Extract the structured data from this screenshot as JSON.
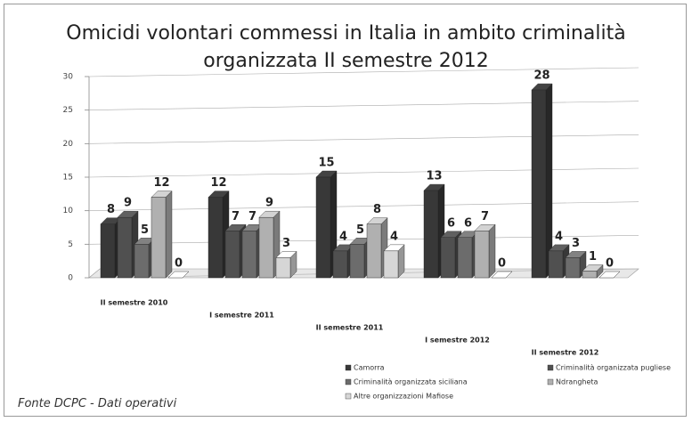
{
  "chart_data": {
    "type": "bar3d",
    "title": "Omicidi volontari commessi in Italia in ambito criminalità organizzata II semestre 2012",
    "source": "Fonte DCPC - Dati operativi",
    "categories": [
      "II semestre 2010",
      "I semestre 2011",
      "II semestre 2011",
      "I semestre 2012",
      "II semestre 2012"
    ],
    "series": [
      {
        "name": "Camorra",
        "color": "#383838",
        "values": [
          8,
          12,
          15,
          13,
          28
        ]
      },
      {
        "name": "Criminalità organizzata pugliese",
        "color": "#505050",
        "values": [
          9,
          7,
          4,
          6,
          4
        ]
      },
      {
        "name": "Criminalità organizzata siciliana",
        "color": "#6c6c6c",
        "values": [
          5,
          7,
          5,
          6,
          3
        ]
      },
      {
        "name": "Ndrangheta",
        "color": "#b0b0b0",
        "values": [
          12,
          9,
          8,
          7,
          1
        ]
      },
      {
        "name": "Altre organizzazioni Mafiose",
        "color": "#d6d6d6",
        "values": [
          0,
          3,
          4,
          0,
          0
        ]
      }
    ],
    "ylim": [
      0,
      30
    ],
    "yticks": [
      0,
      5,
      10,
      15,
      20,
      25,
      30
    ],
    "grid": true
  }
}
